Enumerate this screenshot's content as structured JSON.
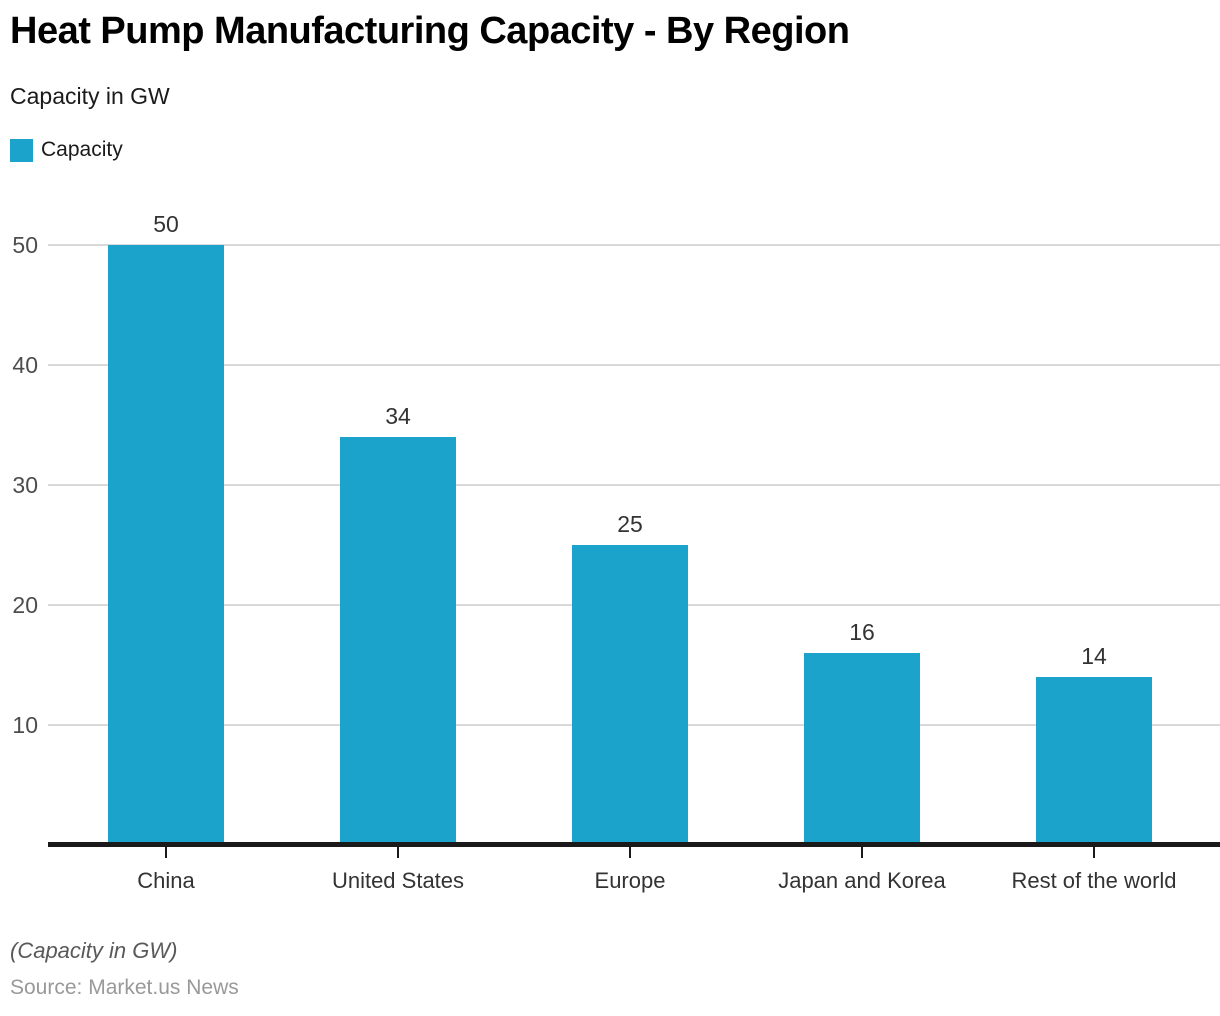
{
  "header": {
    "title": "Heat Pump Manufacturing Capacity - By Region",
    "subtitle": "Capacity in GW",
    "legend": {
      "label": "Capacity",
      "swatch_icon": "legend-swatch-square"
    }
  },
  "footer": {
    "footnote": "(Capacity in GW)",
    "source": "Source: Market.us News"
  },
  "colors": {
    "bar": "#1CA3CC",
    "gridline": "#D9D9D9",
    "axis": "#1A1A1A",
    "value_label": "#333333",
    "y_tick_label": "#4D4D4D",
    "category_label": "#333333",
    "source_text": "#999999"
  },
  "chart_data": {
    "type": "bar",
    "title": "Heat Pump Manufacturing Capacity - By Region",
    "subtitle": "Capacity in GW",
    "categories": [
      "China",
      "United States",
      "Europe",
      "Japan and Korea",
      "Rest of the world"
    ],
    "series": [
      {
        "name": "Capacity",
        "color": "#1CA3CC",
        "values": [
          50,
          34,
          25,
          16,
          14
        ]
      }
    ],
    "value_labels": [
      50,
      34,
      25,
      16,
      14
    ],
    "xlabel": "",
    "ylabel": "Capacity in GW",
    "ylim": [
      0,
      50
    ],
    "yticks": [
      10,
      20,
      30,
      40,
      50
    ],
    "grid": true,
    "legend_position": "top-left",
    "footnote": "(Capacity in GW)",
    "source": "Source: Market.us News"
  }
}
